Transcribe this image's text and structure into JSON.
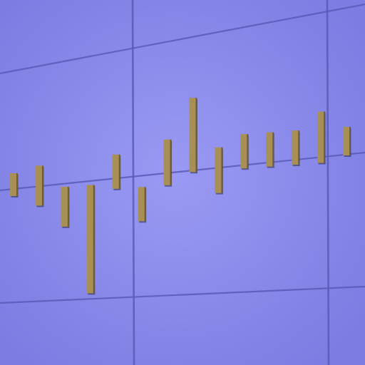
{
  "chart_data": {
    "type": "bar",
    "title": "",
    "xlabel": "",
    "ylabel": "",
    "baseline": 0,
    "grid": true,
    "bars": [
      {
        "top": 0.5,
        "bottom": -1.5
      },
      {
        "top": 1.0,
        "bottom": -2.5
      },
      {
        "top": -1.0,
        "bottom": -4.5
      },
      {
        "top": -1.0,
        "bottom": -10.5
      },
      {
        "top": 1.5,
        "bottom": -1.5
      },
      {
        "top": -1.5,
        "bottom": -4.5
      },
      {
        "top": 2.5,
        "bottom": -1.5
      },
      {
        "top": 6.0,
        "bottom": -0.5
      },
      {
        "top": 1.5,
        "bottom": -2.5
      },
      {
        "top": 2.5,
        "bottom": -0.5
      },
      {
        "top": 2.5,
        "bottom": -0.5
      },
      {
        "top": 2.5,
        "bottom": -0.5
      },
      {
        "top": 4.0,
        "bottom": -0.5
      },
      {
        "top": 2.5,
        "bottom": 0.0
      }
    ]
  },
  "colors": {
    "background": "#8484e8",
    "background_center": "#9a9af4",
    "grid": "#5a5ab8",
    "bar_face": "#a88f55",
    "bar_side": "#6e5d32",
    "bar_shadow": "#2a2a40"
  }
}
